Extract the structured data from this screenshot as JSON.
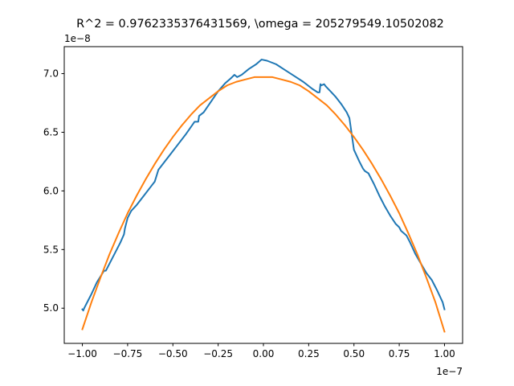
{
  "chart_data": {
    "type": "line",
    "title": "R^2 = 0.9762335376431569, \\omega = 205279549.10502082",
    "xlabel": "",
    "ylabel": "",
    "x_offset_label": "1e−7",
    "y_offset_label": "1e−8",
    "xlim": [
      -1.1,
      1.1
    ],
    "ylim": [
      4.7,
      7.23
    ],
    "grid": false,
    "legend": "none",
    "x_ticks": [
      -1.0,
      -0.75,
      -0.5,
      -0.25,
      0.0,
      0.25,
      0.5,
      0.75,
      1.0
    ],
    "x_tick_labels": [
      "−1.00",
      "−0.75",
      "−0.50",
      "−0.25",
      "0.00",
      "0.25",
      "0.50",
      "0.75",
      "1.00"
    ],
    "y_ticks": [
      5.0,
      5.5,
      6.0,
      6.5,
      7.0
    ],
    "y_tick_labels": [
      "5.0",
      "5.5",
      "6.0",
      "6.5",
      "7.0"
    ],
    "series": [
      {
        "color": "#1f77b4",
        "points": [
          [
            -1.0,
            4.99
          ],
          [
            -0.995,
            4.98
          ],
          [
            -0.99,
            5.0
          ],
          [
            -0.97,
            5.06
          ],
          [
            -0.95,
            5.12
          ],
          [
            -0.92,
            5.22
          ],
          [
            -0.9,
            5.27
          ],
          [
            -0.88,
            5.32
          ],
          [
            -0.87,
            5.32
          ],
          [
            -0.85,
            5.38
          ],
          [
            -0.82,
            5.47
          ],
          [
            -0.79,
            5.56
          ],
          [
            -0.77,
            5.63
          ],
          [
            -0.765,
            5.68
          ],
          [
            -0.75,
            5.77
          ],
          [
            -0.73,
            5.83
          ],
          [
            -0.7,
            5.88
          ],
          [
            -0.66,
            5.96
          ],
          [
            -0.62,
            6.04
          ],
          [
            -0.6,
            6.08
          ],
          [
            -0.58,
            6.18
          ],
          [
            -0.55,
            6.24
          ],
          [
            -0.51,
            6.32
          ],
          [
            -0.47,
            6.4
          ],
          [
            -0.43,
            6.48
          ],
          [
            -0.38,
            6.59
          ],
          [
            -0.36,
            6.59
          ],
          [
            -0.355,
            6.64
          ],
          [
            -0.33,
            6.67
          ],
          [
            -0.29,
            6.76
          ],
          [
            -0.25,
            6.85
          ],
          [
            -0.21,
            6.92
          ],
          [
            -0.18,
            6.96
          ],
          [
            -0.16,
            6.99
          ],
          [
            -0.145,
            6.97
          ],
          [
            -0.12,
            6.99
          ],
          [
            -0.08,
            7.04
          ],
          [
            -0.04,
            7.08
          ],
          [
            -0.01,
            7.12
          ],
          [
            0.02,
            7.11
          ],
          [
            0.07,
            7.08
          ],
          [
            0.12,
            7.03
          ],
          [
            0.17,
            6.98
          ],
          [
            0.22,
            6.93
          ],
          [
            0.27,
            6.87
          ],
          [
            0.3,
            6.84
          ],
          [
            0.31,
            6.84
          ],
          [
            0.315,
            6.91
          ],
          [
            0.32,
            6.9
          ],
          [
            0.335,
            6.91
          ],
          [
            0.345,
            6.89
          ],
          [
            0.37,
            6.85
          ],
          [
            0.4,
            6.8
          ],
          [
            0.43,
            6.74
          ],
          [
            0.46,
            6.67
          ],
          [
            0.475,
            6.62
          ],
          [
            0.5,
            6.35
          ],
          [
            0.53,
            6.25
          ],
          [
            0.55,
            6.19
          ],
          [
            0.56,
            6.17
          ],
          [
            0.58,
            6.15
          ],
          [
            0.61,
            6.06
          ],
          [
            0.64,
            5.96
          ],
          [
            0.67,
            5.87
          ],
          [
            0.7,
            5.79
          ],
          [
            0.73,
            5.72
          ],
          [
            0.75,
            5.69
          ],
          [
            0.76,
            5.66
          ],
          [
            0.79,
            5.62
          ],
          [
            0.81,
            5.56
          ],
          [
            0.84,
            5.46
          ],
          [
            0.87,
            5.38
          ],
          [
            0.9,
            5.3
          ],
          [
            0.93,
            5.24
          ],
          [
            0.96,
            5.15
          ],
          [
            0.99,
            5.05
          ],
          [
            1.0,
            4.99
          ]
        ]
      },
      {
        "color": "#ff7f0e",
        "points": [
          [
            -1.0,
            4.82
          ],
          [
            -0.95,
            5.05
          ],
          [
            -0.9,
            5.26
          ],
          [
            -0.85,
            5.46
          ],
          [
            -0.8,
            5.64
          ],
          [
            -0.75,
            5.81
          ],
          [
            -0.7,
            5.96
          ],
          [
            -0.65,
            6.1
          ],
          [
            -0.6,
            6.23
          ],
          [
            -0.55,
            6.35
          ],
          [
            -0.5,
            6.46
          ],
          [
            -0.45,
            6.56
          ],
          [
            -0.4,
            6.65
          ],
          [
            -0.35,
            6.73
          ],
          [
            -0.3,
            6.79
          ],
          [
            -0.25,
            6.85
          ],
          [
            -0.2,
            6.9
          ],
          [
            -0.15,
            6.93
          ],
          [
            -0.1,
            6.95
          ],
          [
            -0.05,
            6.97
          ],
          [
            0.0,
            6.97
          ],
          [
            0.05,
            6.97
          ],
          [
            0.1,
            6.95
          ],
          [
            0.15,
            6.93
          ],
          [
            0.2,
            6.9
          ],
          [
            0.25,
            6.85
          ],
          [
            0.3,
            6.79
          ],
          [
            0.35,
            6.73
          ],
          [
            0.4,
            6.65
          ],
          [
            0.45,
            6.56
          ],
          [
            0.5,
            6.46
          ],
          [
            0.55,
            6.35
          ],
          [
            0.6,
            6.23
          ],
          [
            0.65,
            6.1
          ],
          [
            0.7,
            5.96
          ],
          [
            0.75,
            5.81
          ],
          [
            0.8,
            5.64
          ],
          [
            0.85,
            5.46
          ],
          [
            0.9,
            5.26
          ],
          [
            0.95,
            5.05
          ],
          [
            1.0,
            4.8
          ]
        ]
      }
    ]
  }
}
